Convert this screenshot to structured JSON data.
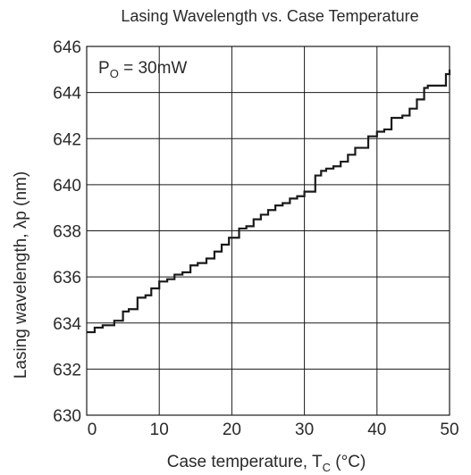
{
  "chart_data": {
    "type": "line",
    "title": "Lasing Wavelength vs. Case Temperature",
    "xlabel": {
      "text": "Case temperature,  T",
      "subscript": "C",
      "unit": "  (°C)"
    },
    "ylabel": {
      "text": "Lasing wavelength,  λp  (nm)"
    },
    "annotation": {
      "text": "P",
      "subscript": "O",
      "rest": " = 30mW"
    },
    "xlim": [
      0,
      50
    ],
    "ylim": [
      630,
      646
    ],
    "x_ticks": [
      "0",
      "10",
      "20",
      "30",
      "40",
      "50"
    ],
    "y_ticks": [
      "630",
      "632",
      "634",
      "636",
      "638",
      "640",
      "642",
      "644",
      "646"
    ],
    "grid": true,
    "step": true,
    "series": [
      {
        "line_color": "#1a1a1a",
        "x": [
          0,
          1.1,
          2.2,
          3.8,
          5.0,
          5.8,
          7.0,
          8.1,
          8.9,
          10.0,
          11.1,
          12.1,
          13.2,
          14.3,
          15.3,
          16.5,
          17.6,
          18.6,
          19.6,
          21.0,
          22.0,
          23.0,
          24.0,
          25.0,
          26.0,
          27.0,
          28.0,
          29.0,
          30.0,
          31.5,
          32.3,
          33.0,
          34.0,
          35.0,
          36.0,
          37.0,
          38.0,
          38.8,
          40.0,
          41.0,
          42.0,
          43.5,
          44.5,
          45.5,
          46.5,
          47.0,
          48.0,
          49.5,
          50.0
        ],
        "y": [
          633.6,
          633.8,
          633.9,
          634.1,
          634.5,
          634.6,
          635.1,
          635.2,
          635.5,
          635.8,
          635.9,
          636.1,
          636.2,
          636.5,
          636.6,
          636.8,
          637.1,
          637.4,
          637.7,
          638.1,
          638.2,
          638.5,
          638.7,
          638.9,
          639.1,
          639.2,
          639.4,
          639.5,
          639.7,
          640.4,
          640.6,
          640.7,
          640.8,
          641.0,
          641.3,
          641.6,
          641.6,
          642.1,
          642.3,
          642.4,
          642.9,
          643.0,
          643.3,
          643.7,
          644.2,
          644.3,
          644.3,
          644.8,
          645.0
        ]
      }
    ]
  }
}
